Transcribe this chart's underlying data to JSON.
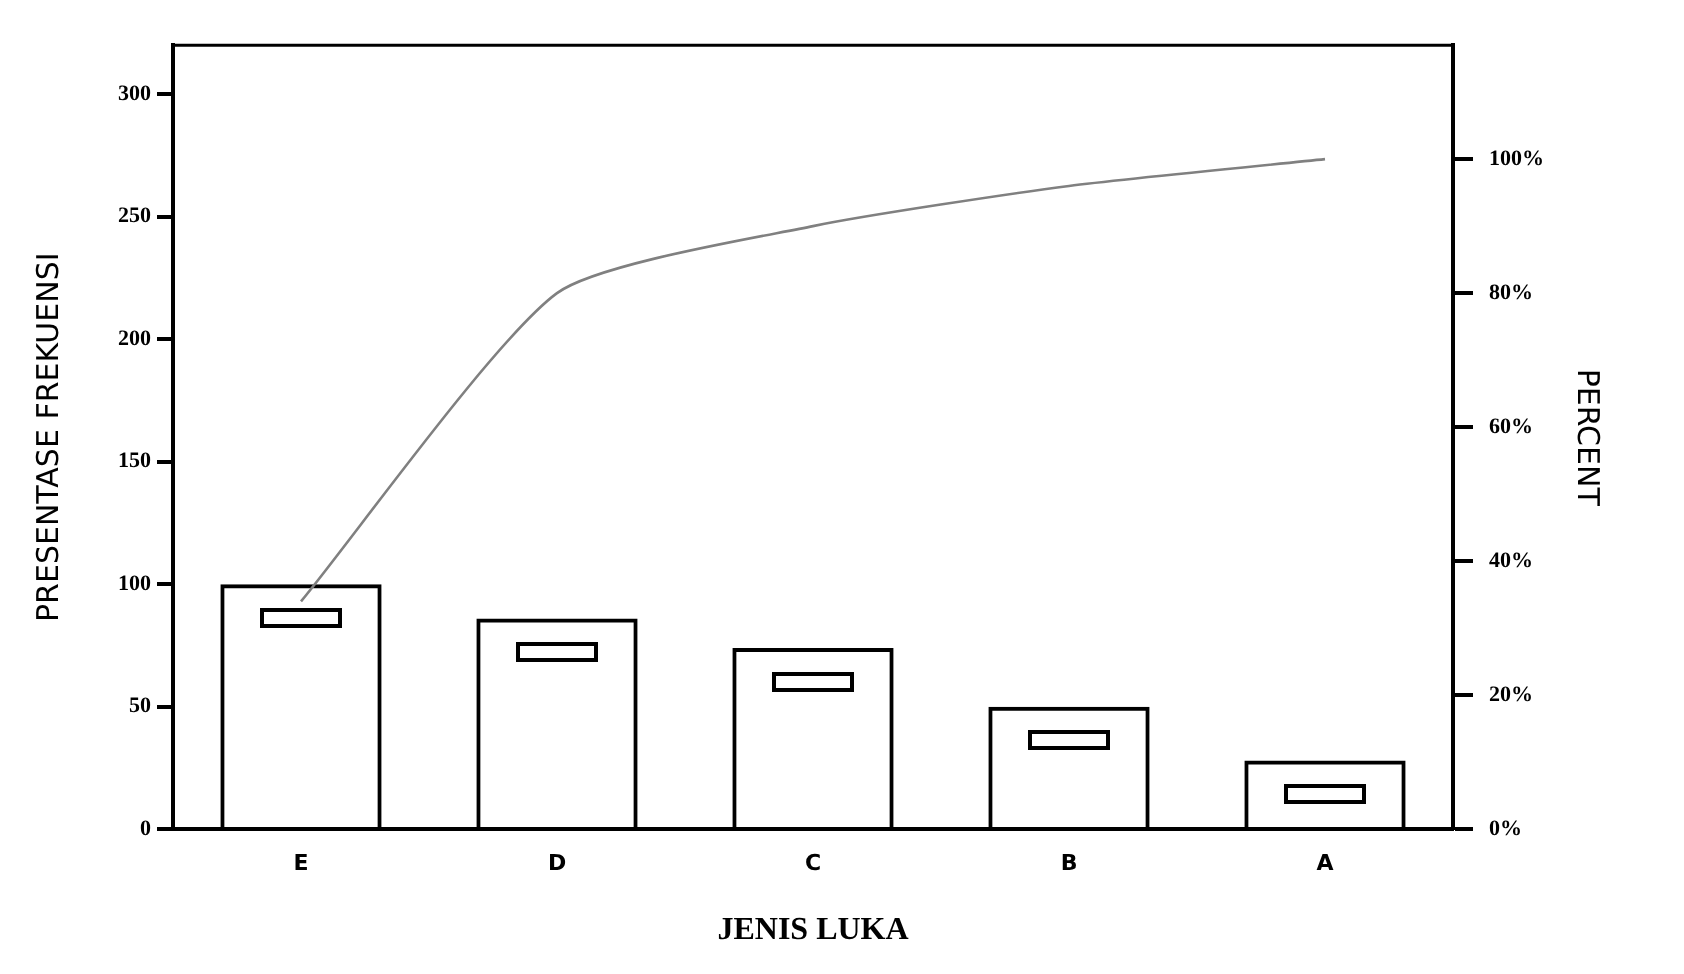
{
  "chart_data": {
    "type": "bar",
    "xlabel": "JENIS LUKA",
    "ylabel": "PRESENTASE FREKUENSI",
    "y2label": "PERCENT",
    "categories": [
      "E",
      "D",
      "C",
      "B",
      "A"
    ],
    "series": [
      {
        "color": "#000000",
        "values": [
          100,
          86,
          74,
          50,
          28
        ]
      },
      {
        "type": "line",
        "axis": "y2",
        "color": "#808080",
        "values": [
          34,
          80,
          90,
          96,
          100
        ]
      }
    ],
    "ylim": [
      0,
      320
    ],
    "yticks": [
      0,
      50,
      100,
      150,
      200,
      250,
      300
    ],
    "y2lim": [
      0,
      117
    ],
    "y2ticks": [
      {
        "value": 0,
        "label": "0%"
      },
      {
        "value": 20,
        "label": "20%"
      },
      {
        "value": 40,
        "label": "40%"
      },
      {
        "value": 60,
        "label": "60%"
      },
      {
        "value": 80,
        "label": "80%"
      },
      {
        "value": 100,
        "label": "100%"
      }
    ],
    "grid": false,
    "legend": false,
    "marker": "none",
    "line_style": "solid"
  }
}
